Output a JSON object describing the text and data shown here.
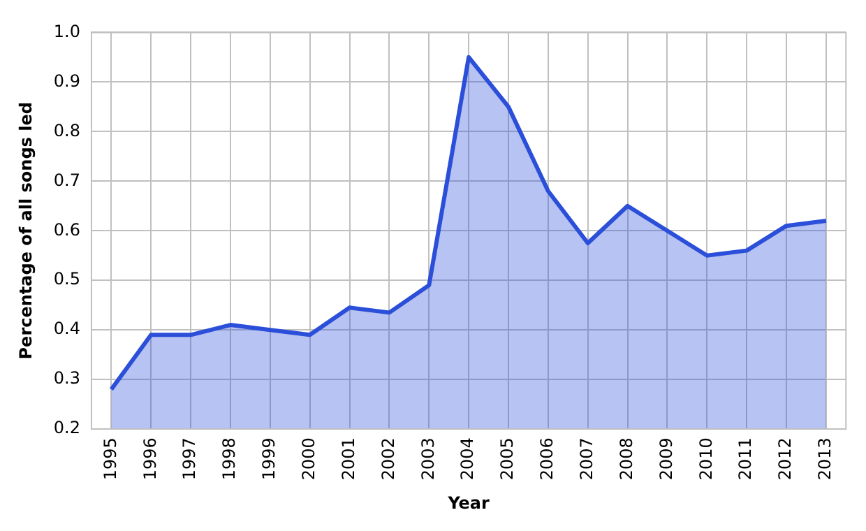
{
  "chart_data": {
    "type": "area",
    "xlabel": "Year",
    "ylabel": "Percentage of all songs led",
    "categories": [
      "1995",
      "1996",
      "1997",
      "1998",
      "1999",
      "2000",
      "2001",
      "2002",
      "2003",
      "2004",
      "2005",
      "2006",
      "2007",
      "2008",
      "2009",
      "2010",
      "2011",
      "2012",
      "2013"
    ],
    "series": [
      {
        "color": "#2b4fd9",
        "values": [
          0.28,
          0.39,
          0.39,
          0.41,
          0.4,
          0.39,
          0.445,
          0.435,
          0.49,
          0.95,
          0.85,
          0.68,
          0.575,
          0.65,
          0.6,
          0.55,
          0.56,
          0.61,
          0.62
        ]
      }
    ],
    "ylim": [
      0.2,
      1.0
    ],
    "yticks": [
      {
        "value": 0.2,
        "label": "0.2"
      },
      {
        "value": 0.3,
        "label": "0.3"
      },
      {
        "value": 0.4,
        "label": "0.4"
      },
      {
        "value": 0.5,
        "label": "0.5"
      },
      {
        "value": 0.6,
        "label": "0.6"
      },
      {
        "value": 0.7,
        "label": "0.7"
      },
      {
        "value": 0.8,
        "label": "0.8"
      },
      {
        "value": 0.9,
        "label": "0.9"
      },
      {
        "value": 1.0,
        "label": "1.0"
      }
    ],
    "grid": true,
    "legend": false
  }
}
